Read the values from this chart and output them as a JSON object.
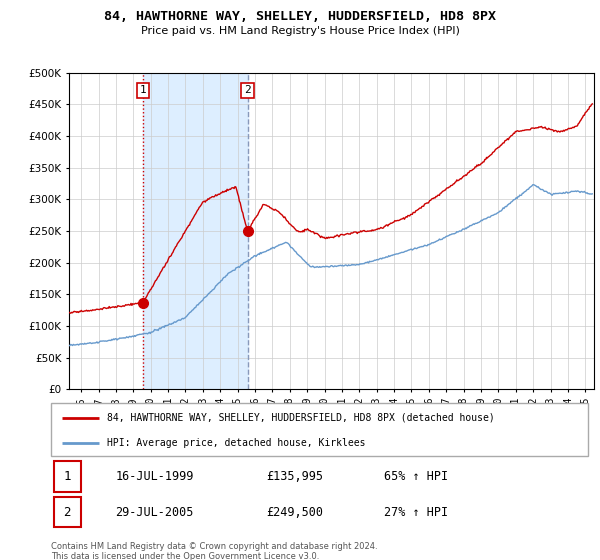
{
  "title": "84, HAWTHORNE WAY, SHELLEY, HUDDERSFIELD, HD8 8PX",
  "subtitle": "Price paid vs. HM Land Registry's House Price Index (HPI)",
  "legend_line1": "84, HAWTHORNE WAY, SHELLEY, HUDDERSFIELD, HD8 8PX (detached house)",
  "legend_line2": "HPI: Average price, detached house, Kirklees",
  "footer": "Contains HM Land Registry data © Crown copyright and database right 2024.\nThis data is licensed under the Open Government Licence v3.0.",
  "table": [
    {
      "num": "1",
      "date": "16-JUL-1999",
      "price": "£135,995",
      "change": "65% ↑ HPI"
    },
    {
      "num": "2",
      "date": "29-JUL-2005",
      "price": "£249,500",
      "change": "27% ↑ HPI"
    }
  ],
  "sale1_x": 1999.54,
  "sale1_y": 135995,
  "sale2_x": 2005.57,
  "sale2_y": 249500,
  "red_color": "#cc0000",
  "blue_color": "#6699cc",
  "shade_color": "#ddeeff",
  "ylim": [
    0,
    500000
  ],
  "xlim_start": 1995.3,
  "xlim_end": 2025.5,
  "yticks": [
    0,
    50000,
    100000,
    150000,
    200000,
    250000,
    300000,
    350000,
    400000,
    450000,
    500000
  ],
  "ytick_labels": [
    "£0",
    "£50K",
    "£100K",
    "£150K",
    "£200K",
    "£250K",
    "£300K",
    "£350K",
    "£400K",
    "£450K",
    "£500K"
  ],
  "xticks": [
    1995,
    1996,
    1997,
    1998,
    1999,
    2000,
    2001,
    2002,
    2003,
    2004,
    2005,
    2006,
    2007,
    2008,
    2009,
    2010,
    2011,
    2012,
    2013,
    2014,
    2015,
    2016,
    2017,
    2018,
    2019,
    2020,
    2021,
    2022,
    2023,
    2024,
    2025
  ]
}
